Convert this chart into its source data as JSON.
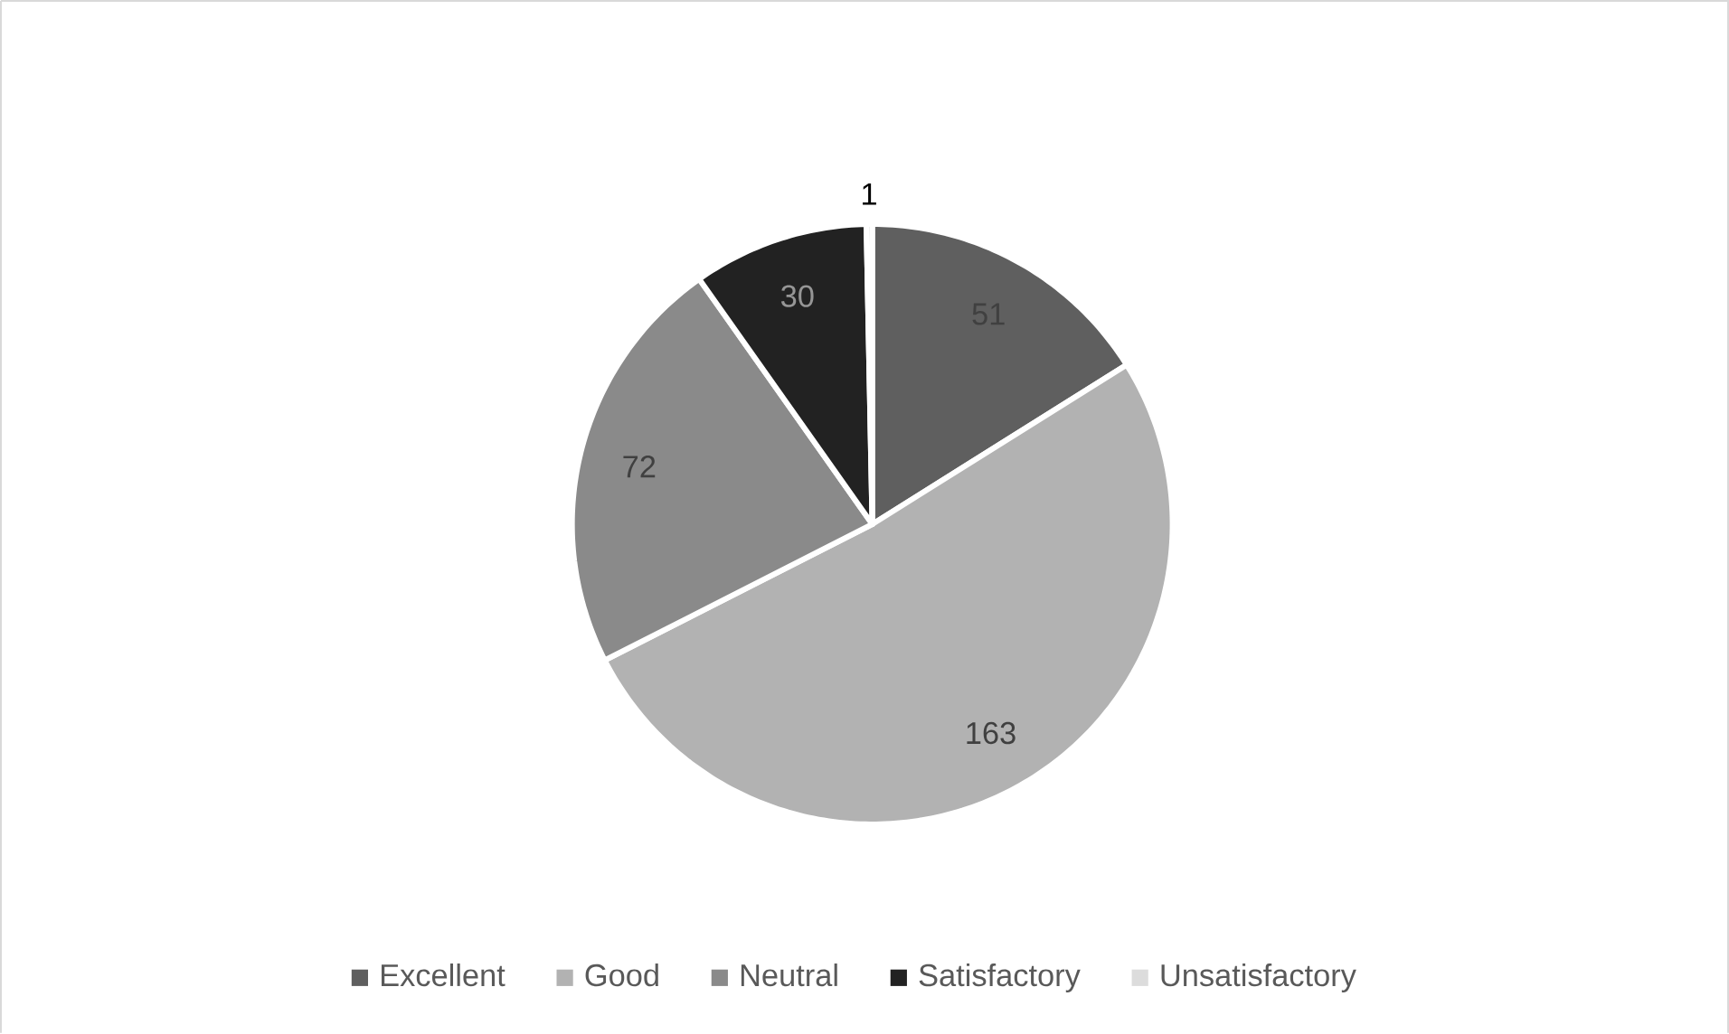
{
  "chart_data": {
    "type": "pie",
    "categories": [
      "Excellent",
      "Good",
      "Neutral",
      "Satisfactory",
      "Unsatisfactory"
    ],
    "values": [
      51,
      163,
      72,
      30,
      1
    ],
    "colors": [
      "#5f5f5f",
      "#b2b2b2",
      "#8a8a8a",
      "#222222",
      "#dcdcdc"
    ],
    "data_labels": true,
    "legend": "bottom"
  }
}
